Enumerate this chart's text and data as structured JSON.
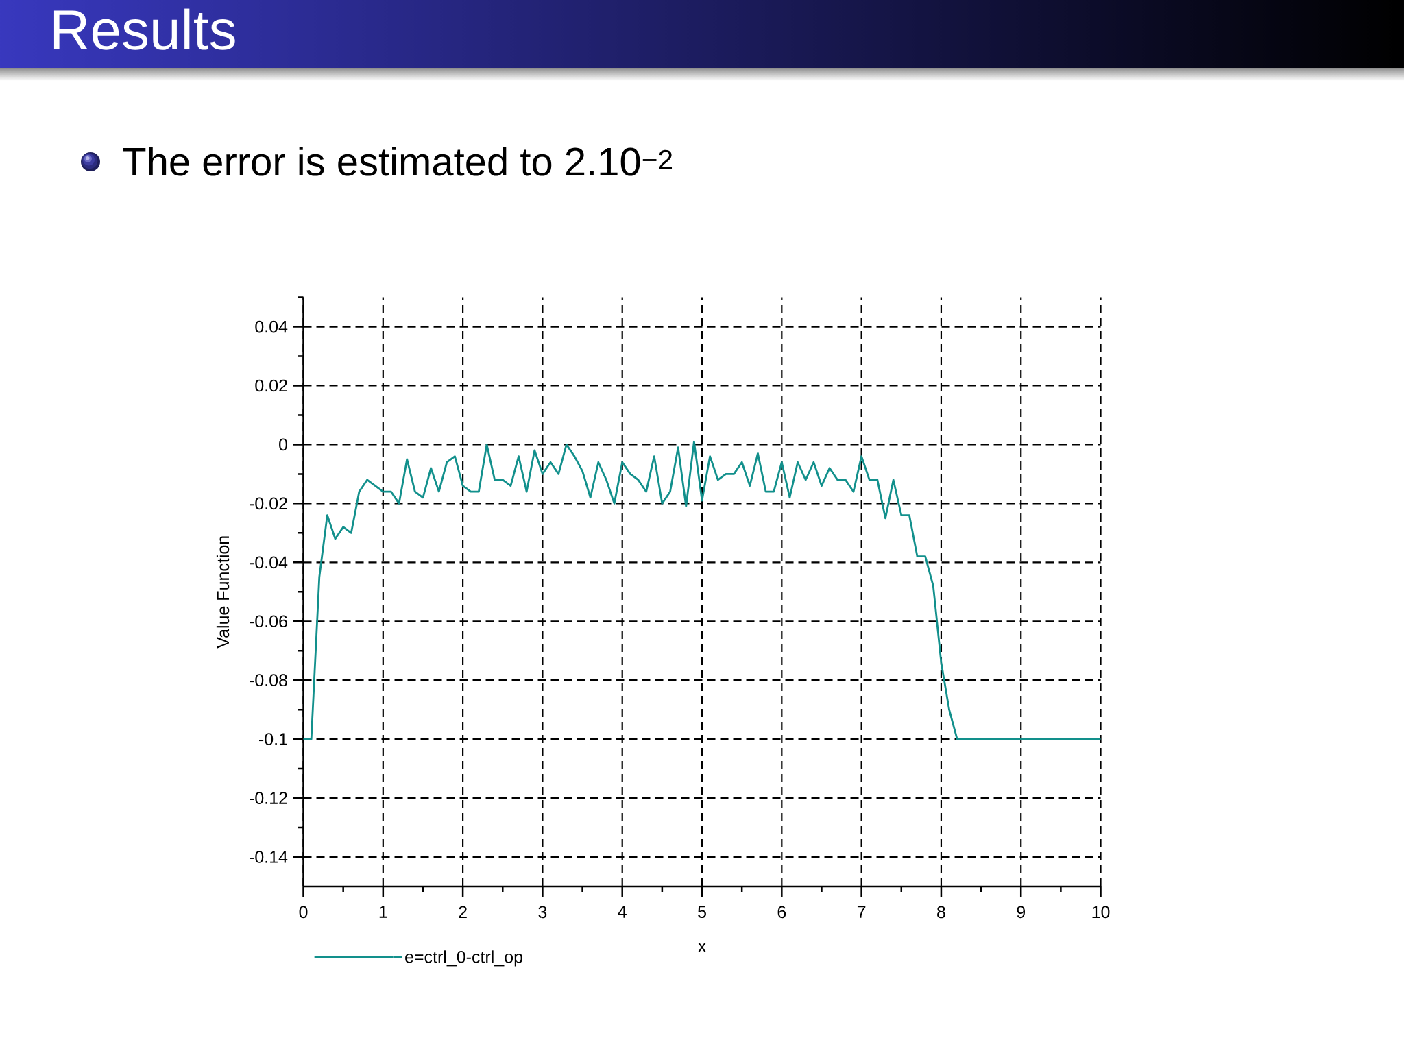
{
  "chart_data": {
    "type": "line",
    "title": "Results",
    "subtitle": "The error is estimated to 2.10$^{−2}$",
    "xlabel": "x",
    "ylabel": "Value Function",
    "x": [
      0,
      0.1,
      0.2,
      0.3,
      0.4,
      0.5,
      0.6,
      0.7,
      0.8,
      0.9,
      1,
      1.1,
      1.2,
      1.3,
      1.4,
      1.5,
      1.6,
      1.7,
      1.8,
      1.9,
      2,
      2.1,
      2.2,
      2.3,
      2.4,
      2.5,
      2.6,
      2.7,
      2.8,
      2.9,
      3,
      3.1,
      3.2,
      3.3,
      3.4,
      3.5,
      3.6,
      3.7,
      3.8,
      3.9,
      4,
      4.1,
      4.2,
      4.3,
      4.4,
      4.5,
      4.6,
      4.7,
      4.8,
      4.9,
      5,
      5.1,
      5.2,
      5.3,
      5.4,
      5.5,
      5.6,
      5.7,
      5.8,
      5.9,
      6,
      6.1,
      6.2,
      6.3,
      6.4,
      6.5,
      6.6,
      6.7,
      6.8,
      6.9,
      7,
      7.1,
      7.2,
      7.3,
      7.4,
      7.5,
      7.6,
      7.7,
      7.8,
      7.9,
      8,
      8.1,
      8.2,
      8.3,
      8.4,
      8.5,
      8.6,
      8.7,
      8.8,
      8.9,
      9,
      9.1,
      9.2,
      9.3,
      9.4,
      9.5,
      9.6,
      9.7,
      9.8,
      9.9,
      10
    ],
    "series": [
      {
        "name": "e=ctrl_0-ctrl_op",
        "color": "#12908c",
        "values": [
          -0.1,
          -0.1,
          -0.045,
          -0.024,
          -0.032,
          -0.028,
          -0.03,
          -0.016,
          -0.012,
          -0.014,
          -0.016,
          -0.016,
          -0.02,
          -0.005,
          -0.016,
          -0.018,
          -0.008,
          -0.016,
          -0.006,
          -0.004,
          -0.014,
          -0.016,
          -0.016,
          0,
          -0.012,
          -0.012,
          -0.014,
          -0.004,
          -0.016,
          -0.002,
          -0.01,
          -0.006,
          -0.01,
          0,
          -0.004,
          -0.009,
          -0.018,
          -0.006,
          -0.012,
          -0.02,
          -0.006,
          -0.01,
          -0.012,
          -0.016,
          -0.004,
          -0.02,
          -0.016,
          -0.001,
          -0.021,
          0.001,
          -0.019,
          -0.004,
          -0.012,
          -0.01,
          -0.01,
          -0.006,
          -0.014,
          -0.003,
          -0.016,
          -0.016,
          -0.006,
          -0.018,
          -0.006,
          -0.012,
          -0.006,
          -0.014,
          -0.008,
          -0.012,
          -0.012,
          -0.016,
          -0.004,
          -0.012,
          -0.012,
          -0.025,
          -0.012,
          -0.024,
          -0.024,
          -0.038,
          -0.038,
          -0.048,
          -0.074,
          -0.09,
          -0.1,
          -0.1,
          -0.1,
          -0.1,
          -0.1,
          -0.1,
          -0.1,
          -0.1,
          -0.1,
          -0.1,
          -0.1,
          -0.1,
          -0.1,
          -0.1,
          -0.1,
          -0.1,
          -0.1,
          -0.1,
          -0.1
        ]
      }
    ],
    "xlim": [
      0,
      10
    ],
    "ylim": [
      -0.15,
      0.05
    ],
    "xticks": [
      0,
      {
        "value": 0.5,
        "label": null
      },
      1,
      {
        "value": 1.5,
        "label": null
      },
      2,
      {
        "value": 2.5,
        "label": null
      },
      3,
      {
        "value": 3.5,
        "label": null
      },
      4,
      {
        "value": 4.5,
        "label": null
      },
      5,
      {
        "value": 5.5,
        "label": null
      },
      6,
      {
        "value": 6.5,
        "label": null
      },
      7,
      {
        "value": 7.5,
        "label": null
      },
      8,
      {
        "value": 8.5,
        "label": null
      },
      9,
      {
        "value": 9.5,
        "label": null
      },
      10
    ],
    "yticks": [
      -0.14,
      {
        "value": -0.13,
        "label": null
      },
      -0.12,
      {
        "value": -0.11,
        "label": null
      },
      -0.1,
      {
        "value": -0.09,
        "label": null
      },
      -0.08,
      {
        "value": -0.07,
        "label": null
      },
      -0.06,
      {
        "value": -0.05,
        "label": null
      },
      -0.04,
      {
        "value": -0.03,
        "label": null
      },
      -0.02,
      {
        "value": -0.01,
        "label": null
      },
      0,
      {
        "value": 0.01,
        "label": null
      },
      0.02,
      {
        "value": 0.03,
        "label": null
      },
      0.04,
      {
        "value": 0.05,
        "label": null
      }
    ],
    "grid": true,
    "legend": "bottom left"
  }
}
